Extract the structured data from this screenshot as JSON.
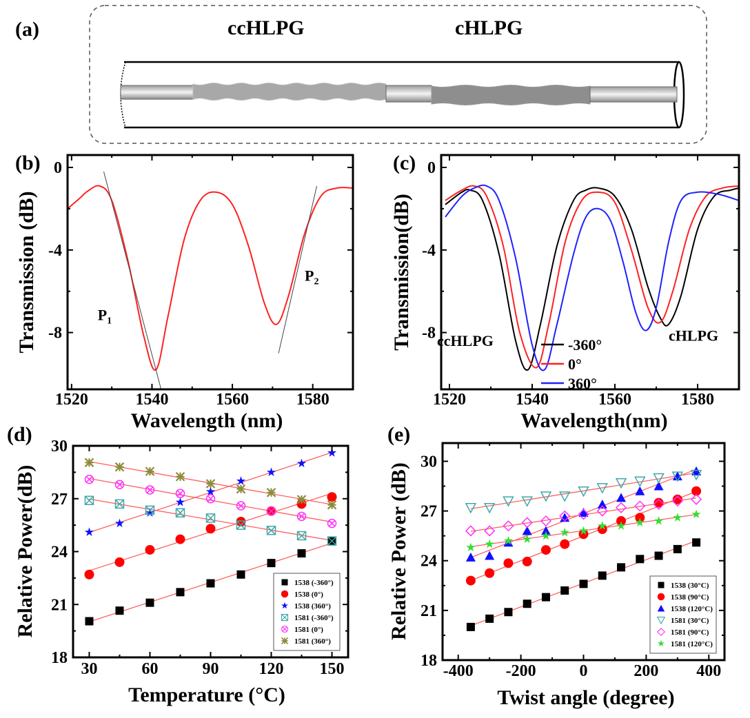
{
  "panels": {
    "a": "(a)",
    "b": "(b)",
    "c": "(c)",
    "d": "(d)",
    "e": "(e)"
  },
  "diagram": {
    "left_label": "ccHLPG",
    "right_label": "cHLPG"
  },
  "chart_data": [
    {
      "id": "b",
      "type": "line",
      "title": "",
      "xlabel": "Wavelength (nm)",
      "ylabel": "Transmission (dB)",
      "xlim": [
        1519,
        1590
      ],
      "ylim": [
        -10.75,
        0.6
      ],
      "xticks": [
        1520,
        1540,
        1560,
        1580
      ],
      "yticks": [
        0,
        -4,
        -8
      ],
      "series": [
        {
          "name": "spectrum",
          "color": "#ff2020",
          "points": [
            [
              1519,
              -2.0
            ],
            [
              1522,
              -1.5
            ],
            [
              1524,
              -1.15
            ],
            [
              1527,
              -0.9
            ],
            [
              1530,
              -1.6
            ],
            [
              1534,
              -4.5
            ],
            [
              1538,
              -8.2
            ],
            [
              1541,
              -9.8
            ],
            [
              1544,
              -7.2
            ],
            [
              1548,
              -3.5
            ],
            [
              1552,
              -1.6
            ],
            [
              1556,
              -1.2
            ],
            [
              1560,
              -1.8
            ],
            [
              1564,
              -3.8
            ],
            [
              1568,
              -6.6
            ],
            [
              1571,
              -7.6
            ],
            [
              1574,
              -6.2
            ],
            [
              1578,
              -3.2
            ],
            [
              1582,
              -1.4
            ],
            [
              1586,
              -1.0
            ],
            [
              1590,
              -1.0
            ]
          ]
        }
      ],
      "tangents": [
        {
          "points": [
            [
              1528,
              -0.2
            ],
            [
              1542.2,
              -10.7
            ]
          ]
        },
        {
          "points": [
            [
              1571.5,
              -9.0
            ],
            [
              1581,
              -0.9
            ]
          ]
        }
      ],
      "annotations": [
        {
          "text": "P",
          "sub": "1",
          "x": 1526.5,
          "y": -7.4
        },
        {
          "text": "P",
          "sub": "2",
          "x": 1578,
          "y": -5.5
        }
      ]
    },
    {
      "id": "c",
      "type": "line",
      "title": "",
      "xlabel": "Wavelength(nm)",
      "ylabel": "Transmission(dB)",
      "xlim": [
        1518,
        1590
      ],
      "ylim": [
        -10.75,
        0.6
      ],
      "xticks": [
        1520,
        1540,
        1560,
        1580
      ],
      "yticks": [
        0,
        -4,
        -8
      ],
      "legend": "center-right",
      "series": [
        {
          "name": "-360°",
          "color": "#000000",
          "points": [
            [
              1519,
              -1.8
            ],
            [
              1523,
              -1.2
            ],
            [
              1525,
              -1.1
            ],
            [
              1528,
              -1.6
            ],
            [
              1532,
              -4.2
            ],
            [
              1536,
              -8.4
            ],
            [
              1539,
              -9.8
            ],
            [
              1542,
              -7.6
            ],
            [
              1546,
              -3.8
            ],
            [
              1550,
              -1.6
            ],
            [
              1553,
              -1.1
            ],
            [
              1556,
              -1.0
            ],
            [
              1560,
              -1.4
            ],
            [
              1564,
              -3.0
            ],
            [
              1568,
              -5.8
            ],
            [
              1571,
              -7.3
            ],
            [
              1573,
              -7.6
            ],
            [
              1576,
              -6.2
            ],
            [
              1580,
              -3.0
            ],
            [
              1584,
              -1.4
            ],
            [
              1588,
              -1.1
            ],
            [
              1590,
              -1.0
            ]
          ]
        },
        {
          "name": "0°",
          "color": "#ff2020",
          "points": [
            [
              1519,
              -1.6
            ],
            [
              1523,
              -1.1
            ],
            [
              1526,
              -0.9
            ],
            [
              1529,
              -1.4
            ],
            [
              1533,
              -3.8
            ],
            [
              1537,
              -8.0
            ],
            [
              1541,
              -9.7
            ],
            [
              1544,
              -7.6
            ],
            [
              1548,
              -3.6
            ],
            [
              1552,
              -1.6
            ],
            [
              1556,
              -1.2
            ],
            [
              1560,
              -1.7
            ],
            [
              1564,
              -4.0
            ],
            [
              1568,
              -6.8
            ],
            [
              1571,
              -7.5
            ],
            [
              1574,
              -6.0
            ],
            [
              1578,
              -3.0
            ],
            [
              1582,
              -1.4
            ],
            [
              1586,
              -1.0
            ],
            [
              1590,
              -0.9
            ]
          ]
        },
        {
          "name": "360°",
          "color": "#2020ff",
          "points": [
            [
              1519,
              -2.4
            ],
            [
              1523,
              -1.4
            ],
            [
              1526,
              -1.0
            ],
            [
              1529,
              -0.9
            ],
            [
              1532,
              -1.6
            ],
            [
              1536,
              -4.4
            ],
            [
              1540,
              -8.6
            ],
            [
              1543,
              -9.8
            ],
            [
              1546,
              -7.6
            ],
            [
              1550,
              -4.2
            ],
            [
              1553,
              -2.4
            ],
            [
              1556,
              -2.0
            ],
            [
              1559,
              -2.6
            ],
            [
              1562,
              -4.6
            ],
            [
              1565,
              -7.0
            ],
            [
              1567.5,
              -7.9
            ],
            [
              1570,
              -6.8
            ],
            [
              1573,
              -3.6
            ],
            [
              1576,
              -1.6
            ],
            [
              1580,
              -1.2
            ],
            [
              1585,
              -1.3
            ],
            [
              1590,
              -1.6
            ]
          ]
        }
      ],
      "annotations": [
        {
          "text": "ccHLPG",
          "x": 1517,
          "y": -8.65
        },
        {
          "text": "cHLPG",
          "x": 1573,
          "y": -8.4
        }
      ]
    },
    {
      "id": "d",
      "type": "scatter",
      "title": "",
      "xlabel": "Temperature (°C)",
      "ylabel": "Relative Power(dB)",
      "xlim": [
        22,
        158
      ],
      "ylim": [
        18,
        30
      ],
      "xticks": [
        30,
        60,
        90,
        120,
        150
      ],
      "yticks": [
        18,
        21,
        24,
        27,
        30
      ],
      "legend": "bottom-right",
      "x": [
        30,
        45,
        60,
        75,
        90,
        105,
        120,
        135,
        150
      ],
      "series": [
        {
          "name": "1538 (-360°)",
          "marker": "square",
          "color": "#000000",
          "values": [
            20.05,
            20.65,
            21.1,
            21.7,
            22.2,
            22.7,
            23.35,
            23.9,
            24.6
          ]
        },
        {
          "name": "1538 (0°)",
          "marker": "circle",
          "color": "#ff0000",
          "values": [
            22.7,
            23.4,
            24.1,
            24.7,
            25.3,
            25.7,
            26.3,
            26.7,
            27.1
          ]
        },
        {
          "name": "1538 (360°)",
          "marker": "star",
          "color": "#1010ff",
          "values": [
            25.1,
            25.6,
            26.2,
            26.8,
            27.4,
            28.0,
            28.5,
            29.0,
            29.6
          ]
        },
        {
          "name": "1581 (-360°)",
          "marker": "box-x",
          "color": "#40a8a8",
          "values": [
            26.9,
            26.7,
            26.35,
            26.2,
            25.9,
            25.5,
            25.2,
            24.9,
            24.6
          ]
        },
        {
          "name": "1581 (0°)",
          "marker": "circle-x",
          "color": "#ff30ff",
          "values": [
            28.1,
            27.8,
            27.5,
            27.3,
            27.0,
            26.6,
            26.3,
            26.0,
            25.6
          ]
        },
        {
          "name": "1581 (360°)",
          "marker": "asterisk",
          "color": "#8c8c3c",
          "values": [
            29.05,
            28.8,
            28.55,
            28.25,
            27.85,
            27.55,
            27.35,
            26.95,
            26.65
          ]
        }
      ]
    },
    {
      "id": "e",
      "type": "scatter",
      "title": "",
      "xlabel": "Twist angle (degree)",
      "ylabel": "Relative Power (dB)",
      "xlim": [
        -450,
        450
      ],
      "ylim": [
        18,
        31.1
      ],
      "xticks": [
        -400,
        -200,
        0,
        200,
        400
      ],
      "yticks": [
        18,
        21,
        24,
        27,
        30
      ],
      "legend": "bottom-right",
      "x": [
        -360,
        -300,
        -240,
        -180,
        -120,
        -60,
        0,
        60,
        120,
        180,
        240,
        300,
        360
      ],
      "series": [
        {
          "name": "1538 (30°C)",
          "marker": "square",
          "color": "#000000",
          "values": [
            20.0,
            20.5,
            20.9,
            21.4,
            21.8,
            22.2,
            22.6,
            23.1,
            23.6,
            24.1,
            24.3,
            24.7,
            25.1
          ]
        },
        {
          "name": "1538 (90°C)",
          "marker": "circle",
          "color": "#ff0000",
          "values": [
            22.8,
            23.25,
            23.85,
            23.95,
            24.65,
            25.0,
            25.6,
            25.9,
            26.4,
            26.6,
            27.5,
            27.7,
            28.2
          ]
        },
        {
          "name": "1538 (120°C)",
          "marker": "triangle",
          "color": "#1010ff",
          "values": [
            24.2,
            24.3,
            25.1,
            25.8,
            25.8,
            26.6,
            26.9,
            27.4,
            27.8,
            28.2,
            28.5,
            29.1,
            29.4
          ]
        },
        {
          "name": "1581 (30°C)",
          "marker": "triangle-down",
          "color": "#40a8a8",
          "values": [
            27.2,
            27.2,
            27.6,
            27.6,
            27.9,
            27.9,
            28.2,
            28.4,
            28.7,
            28.8,
            29.0,
            29.1,
            29.2
          ]
        },
        {
          "name": "1581 (90°C)",
          "marker": "diamond",
          "color": "#ff30ff",
          "values": [
            25.8,
            25.8,
            26.1,
            26.3,
            26.4,
            26.7,
            26.8,
            27.0,
            27.2,
            27.3,
            27.4,
            27.6,
            27.7
          ]
        },
        {
          "name": "1581 (120°C)",
          "marker": "star",
          "color": "#33dd33",
          "values": [
            24.8,
            25.0,
            25.2,
            25.3,
            25.5,
            25.7,
            25.8,
            26.1,
            26.1,
            26.3,
            26.4,
            26.6,
            26.8
          ]
        }
      ]
    }
  ]
}
